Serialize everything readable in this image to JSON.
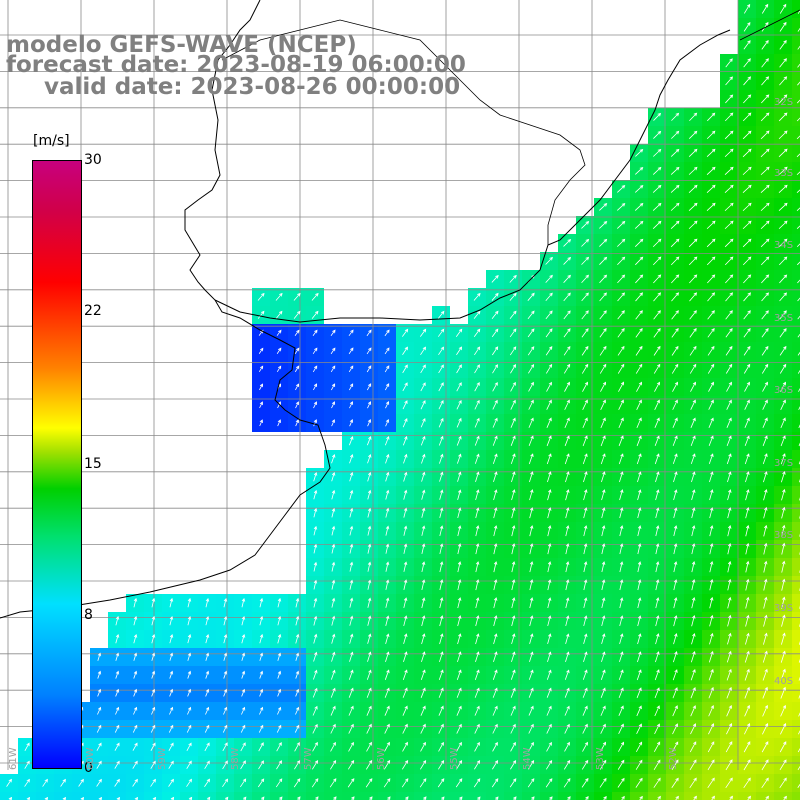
{
  "titles": {
    "line1": "modelo GEFS-WAVE (NCEP)",
    "line2": "forecast date: 2023-08-19 06:00:00",
    "line3": "valid date: 2023-08-26 00:00:00"
  },
  "colorbar": {
    "unit_label": "[m/s]",
    "ticks": [
      "30",
      "22",
      "15",
      "8",
      "0"
    ],
    "min": 0,
    "max": 30,
    "colors": [
      "#0000ff",
      "#00e0ff",
      "#00d000",
      "#ffff00",
      "#ff0000",
      "#c8007e"
    ]
  },
  "map": {
    "variable": "wind speed",
    "lat_labels": [
      "32S",
      "33S",
      "34S",
      "35S",
      "36S",
      "37S",
      "38S",
      "39S",
      "40S"
    ],
    "lon_labels": [
      "61W",
      "60W",
      "59W",
      "58W",
      "57W",
      "56W",
      "55W",
      "54W",
      "53W",
      "52W"
    ],
    "land_color": "#ffffff",
    "grid_color": "#808080"
  }
}
